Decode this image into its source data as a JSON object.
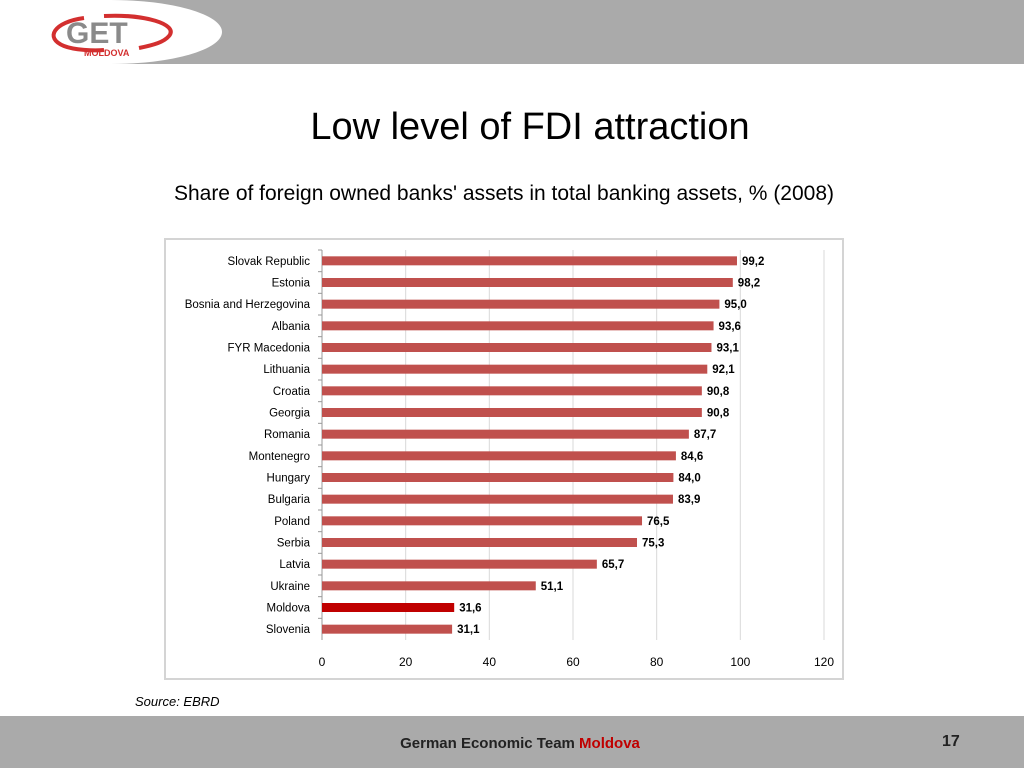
{
  "logo": {
    "text": "GET",
    "subtext": "MOLDOVA"
  },
  "title": "Low level of FDI attraction",
  "subtitle": "Share of foreign owned banks' assets in total banking assets, % (2008)",
  "source": "Source: EBRD",
  "footer": {
    "text": "German Economic Team",
    "highlight": "Moldova",
    "page": "17"
  },
  "colors": {
    "bar": "#c0504d",
    "highlight_bar": "#c00000",
    "band": "#aaaaaa"
  },
  "chart_data": {
    "type": "bar",
    "orientation": "horizontal",
    "categories": [
      "Slovak Republic",
      "Estonia",
      "Bosnia and Herzegovina",
      "Albania",
      "FYR Macedonia",
      "Lithuania",
      "Croatia",
      "Georgia",
      "Romania",
      "Montenegro",
      "Hungary",
      "Bulgaria",
      "Poland",
      "Serbia",
      "Latvia",
      "Ukraine",
      "Moldova",
      "Slovenia"
    ],
    "values": [
      99.2,
      98.2,
      95.0,
      93.6,
      93.1,
      92.1,
      90.8,
      90.8,
      87.7,
      84.6,
      84.0,
      83.9,
      76.5,
      75.3,
      65.7,
      51.1,
      31.6,
      31.1
    ],
    "value_labels": [
      "99,2",
      "98,2",
      "95,0",
      "93,6",
      "93,1",
      "92,1",
      "90,8",
      "90,8",
      "87,7",
      "84,6",
      "84,0",
      "83,9",
      "76,5",
      "75,3",
      "65,7",
      "51,1",
      "31,6",
      "31,1"
    ],
    "highlight": "Moldova",
    "xlim": [
      0,
      120
    ],
    "xticks": [
      "0",
      "20",
      "40",
      "60",
      "80",
      "100",
      "120"
    ],
    "grid": true
  }
}
